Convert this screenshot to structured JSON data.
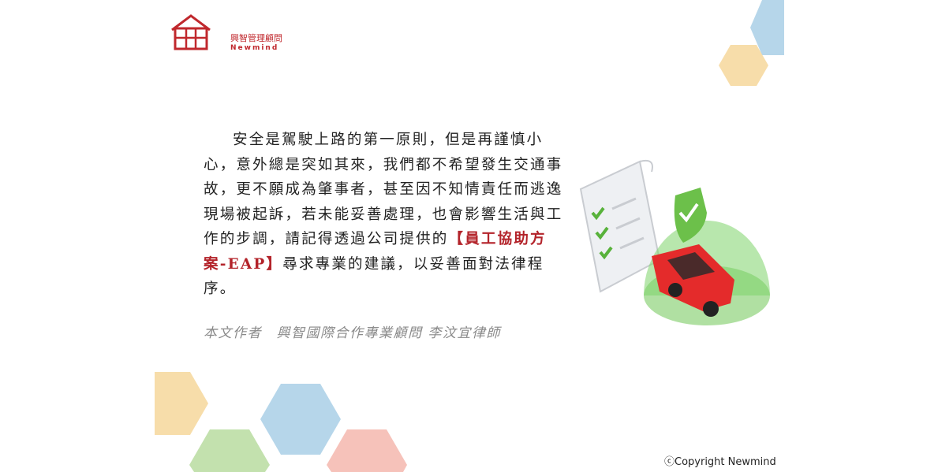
{
  "brand": {
    "name_cn": "興智管理顧問",
    "name_en": "Newmind"
  },
  "article": {
    "body_before": "安全是駕駛上路的第一原則，但是再謹慎小心，意外總是突如其來，我們都不希望發生交通事故，更不願成為肇事者，甚至因不知情責任而逃逸現場被起訴，若未能妥善處理，也會影響生活與工作的步調，請記得透過公司提供的",
    "highlight": "【員工協助方案-EAP】",
    "body_after": "尋求專業的建議，以妥善面對法律程序。"
  },
  "author_line": "本文作者　興智國際合作專業顧問 李汶宜律師",
  "copyright": "ⓒCopyright Newmind",
  "colors": {
    "brand_red": "#c0282d",
    "highlight_red": "#b3232a",
    "hex_blue": "#a9cfe6",
    "hex_yellow": "#f6d79b",
    "hex_green": "#b8dca0",
    "hex_pink": "#f4b7ae"
  }
}
